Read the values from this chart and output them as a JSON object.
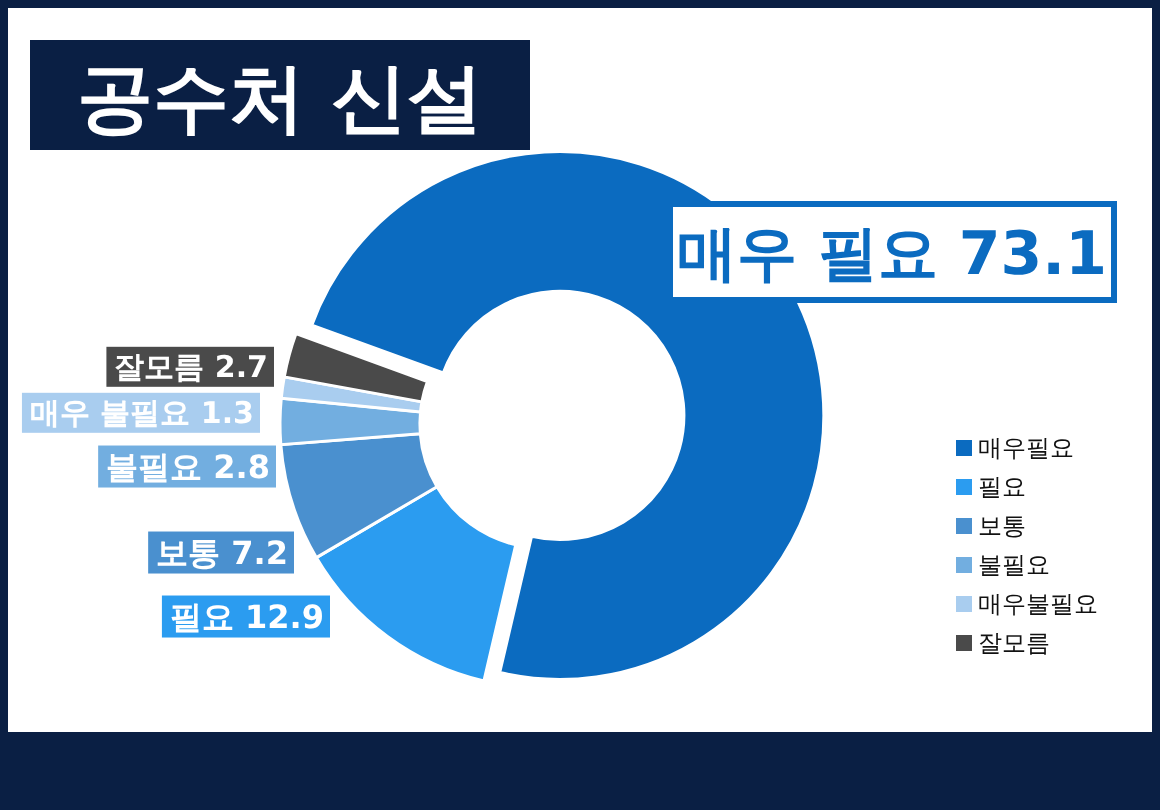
{
  "chart_data": {
    "type": "donut",
    "title": "공수처 신설",
    "categories": [
      "매우필요",
      "필요",
      "보통",
      "불필요",
      "매우불필요",
      "잘모름"
    ],
    "values": [
      73.1,
      12.9,
      7.2,
      2.8,
      1.3,
      2.7
    ],
    "value_labels": [
      "매우 필요 73.1",
      "필요 12.9",
      "보통 7.2",
      "불필요 2.8",
      "매우 불필요 1.3",
      "잘모름 2.7"
    ],
    "colors": [
      "#0b6bc0",
      "#2b9cf0",
      "#4a90cf",
      "#72aee0",
      "#a9cdef",
      "#4a4a4a"
    ],
    "legend": "right"
  }
}
